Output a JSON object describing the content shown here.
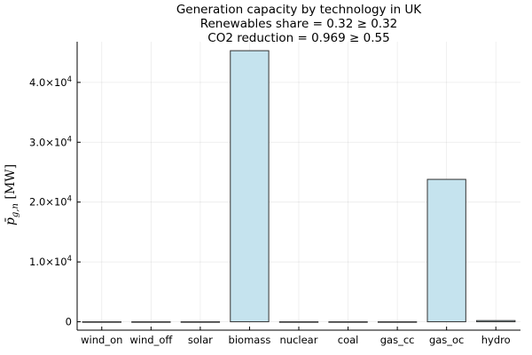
{
  "chart_data": {
    "type": "bar",
    "title_lines": [
      "Generation capacity by technology in UK",
      "Renewables share = 0.32 ≥ 0.32",
      "CO2 reduction = 0.969 ≥ 0.55"
    ],
    "xlabel": "",
    "ylabel": "p̄_{g,n} [MW]",
    "categories": [
      "wind_on",
      "wind_off",
      "solar",
      "biomass",
      "nuclear",
      "coal",
      "gas_cc",
      "gas_oc",
      "hydro"
    ],
    "values": [
      0,
      0,
      0,
      45300,
      0,
      0,
      0,
      23800,
      200
    ],
    "ylim": [
      -1400,
      46800
    ],
    "yticks": [
      0,
      10000,
      20000,
      30000,
      40000
    ],
    "ytick_labels": [
      {
        "base": "0",
        "exp": ""
      },
      {
        "base": "1.0×10",
        "exp": "4"
      },
      {
        "base": "2.0×10",
        "exp": "4"
      },
      {
        "base": "3.0×10",
        "exp": "4"
      },
      {
        "base": "4.0×10",
        "exp": "4"
      }
    ],
    "grid": true,
    "legend": "none",
    "bar_color": "#c5e3ee",
    "bar_edge_color": "#333333"
  }
}
